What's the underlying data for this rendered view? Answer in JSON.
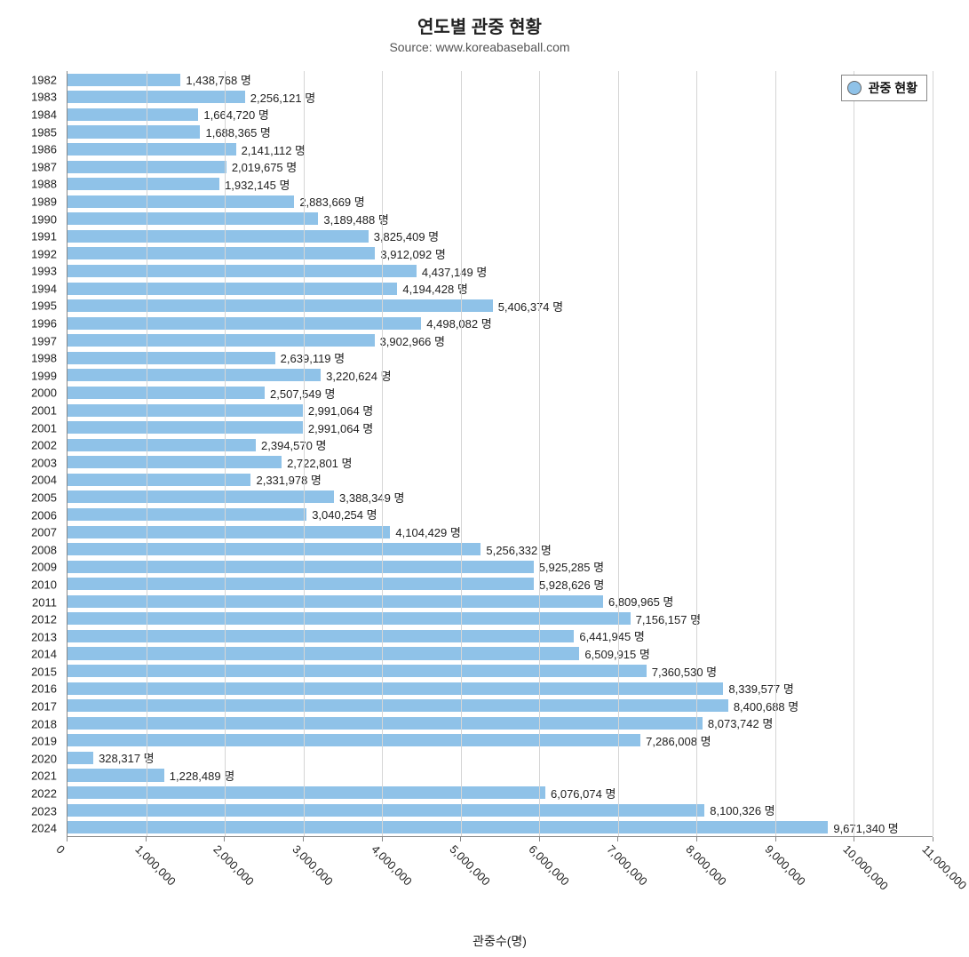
{
  "chart": {
    "type": "horizontal-bar",
    "title": "연도별 관중 현황",
    "title_fontsize": 20,
    "subtitle": "Source: www.koreabaseball.com",
    "subtitle_fontsize": 14,
    "x_axis_label": "관중수(명)",
    "xlim": [
      0,
      11000000
    ],
    "xtick_step": 1000000,
    "xticks": [
      "0",
      "1,000,000",
      "2,000,000",
      "3,000,000",
      "4,000,000",
      "5,000,000",
      "6,000,000",
      "7,000,000",
      "8,000,000",
      "9,000,000",
      "10,000,000",
      "11,000,000"
    ],
    "bar_color": "#8fc2e8",
    "background_color": "#ffffff",
    "grid_color": "#d5d5d5",
    "text_color": "#222222",
    "label_fontsize": 13,
    "label_suffix": " 명",
    "legend_label": "관중 현황",
    "legend_swatch_color": "#8fc2e8",
    "data": [
      {
        "year": "1982",
        "value": 1438768,
        "label": "1,438,768"
      },
      {
        "year": "1983",
        "value": 2256121,
        "label": "2,256,121"
      },
      {
        "year": "1984",
        "value": 1664720,
        "label": "1,664,720"
      },
      {
        "year": "1985",
        "value": 1688365,
        "label": "1,688,365"
      },
      {
        "year": "1986",
        "value": 2141112,
        "label": "2,141,112"
      },
      {
        "year": "1987",
        "value": 2019675,
        "label": "2,019,675"
      },
      {
        "year": "1988",
        "value": 1932145,
        "label": "1,932,145"
      },
      {
        "year": "1989",
        "value": 2883669,
        "label": "2,883,669"
      },
      {
        "year": "1990",
        "value": 3189488,
        "label": "3,189,488"
      },
      {
        "year": "1991",
        "value": 3825409,
        "label": "3,825,409"
      },
      {
        "year": "1992",
        "value": 3912092,
        "label": "3,912,092"
      },
      {
        "year": "1993",
        "value": 4437149,
        "label": "4,437,149"
      },
      {
        "year": "1994",
        "value": 4194428,
        "label": "4,194,428"
      },
      {
        "year": "1995",
        "value": 5406374,
        "label": "5,406,374"
      },
      {
        "year": "1996",
        "value": 4498082,
        "label": "4,498,082"
      },
      {
        "year": "1997",
        "value": 3902966,
        "label": "3,902,966"
      },
      {
        "year": "1998",
        "value": 2639119,
        "label": "2,639,119"
      },
      {
        "year": "1999",
        "value": 3220624,
        "label": "3,220,624"
      },
      {
        "year": "2000",
        "value": 2507549,
        "label": "2,507,549"
      },
      {
        "year": "2001",
        "value": 2991064,
        "label": "2,991,064"
      },
      {
        "year": "2001",
        "value": 2991064,
        "label": "2,991,064"
      },
      {
        "year": "2002",
        "value": 2394570,
        "label": "2,394,570"
      },
      {
        "year": "2003",
        "value": 2722801,
        "label": "2,722,801"
      },
      {
        "year": "2004",
        "value": 2331978,
        "label": "2,331,978"
      },
      {
        "year": "2005",
        "value": 3388349,
        "label": "3,388,349"
      },
      {
        "year": "2006",
        "value": 3040254,
        "label": "3,040,254"
      },
      {
        "year": "2007",
        "value": 4104429,
        "label": "4,104,429"
      },
      {
        "year": "2008",
        "value": 5256332,
        "label": "5,256,332"
      },
      {
        "year": "2009",
        "value": 5925285,
        "label": "5,925,285"
      },
      {
        "year": "2010",
        "value": 5928626,
        "label": "5,928,626"
      },
      {
        "year": "2011",
        "value": 6809965,
        "label": "6,809,965"
      },
      {
        "year": "2012",
        "value": 7156157,
        "label": "7,156,157"
      },
      {
        "year": "2013",
        "value": 6441945,
        "label": "6,441,945"
      },
      {
        "year": "2014",
        "value": 6509915,
        "label": "6,509,915"
      },
      {
        "year": "2015",
        "value": 7360530,
        "label": "7,360,530"
      },
      {
        "year": "2016",
        "value": 8339577,
        "label": "8,339,577"
      },
      {
        "year": "2017",
        "value": 8400688,
        "label": "8,400,688"
      },
      {
        "year": "2018",
        "value": 8073742,
        "label": "8,073,742"
      },
      {
        "year": "2019",
        "value": 7286008,
        "label": "7,286,008"
      },
      {
        "year": "2020",
        "value": 328317,
        "label": "328,317"
      },
      {
        "year": "2021",
        "value": 1228489,
        "label": "1,228,489"
      },
      {
        "year": "2022",
        "value": 6076074,
        "label": "6,076,074"
      },
      {
        "year": "2023",
        "value": 8100326,
        "label": "8,100,326"
      },
      {
        "year": "2024",
        "value": 9671340,
        "label": "9,671,340"
      }
    ]
  }
}
